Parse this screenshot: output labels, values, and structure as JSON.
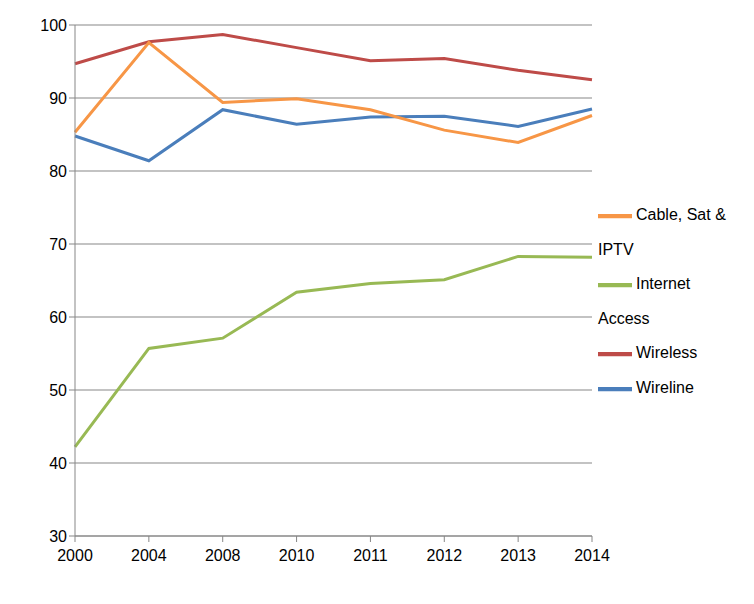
{
  "chart_data": {
    "type": "line",
    "categories": [
      "2000",
      "2004",
      "2008",
      "2010",
      "2011",
      "2012",
      "2013",
      "2014"
    ],
    "series": [
      {
        "name": "Wireline",
        "color": "#4a7ebb",
        "values": [
          84.8,
          81.4,
          88.4,
          86.4,
          87.4,
          87.5,
          86.1,
          88.5
        ]
      },
      {
        "name": "Wireless",
        "color": "#be4b48",
        "values": [
          94.7,
          97.7,
          98.7,
          96.9,
          95.1,
          95.4,
          93.8,
          92.5
        ]
      },
      {
        "name": "Internet Access",
        "color": "#98b954",
        "values": [
          42.2,
          55.7,
          57.1,
          63.4,
          64.6,
          65.1,
          68.3,
          68.2
        ]
      },
      {
        "name": "Cable, Sat & IPTV",
        "color": "#f79646",
        "values": [
          85.3,
          97.6,
          89.4,
          89.9,
          88.4,
          85.6,
          83.9,
          87.6
        ]
      }
    ],
    "ylim": [
      30,
      100
    ],
    "yticks": [
      30,
      40,
      50,
      60,
      70,
      80,
      90,
      100
    ],
    "grid": true,
    "legend": "right"
  }
}
